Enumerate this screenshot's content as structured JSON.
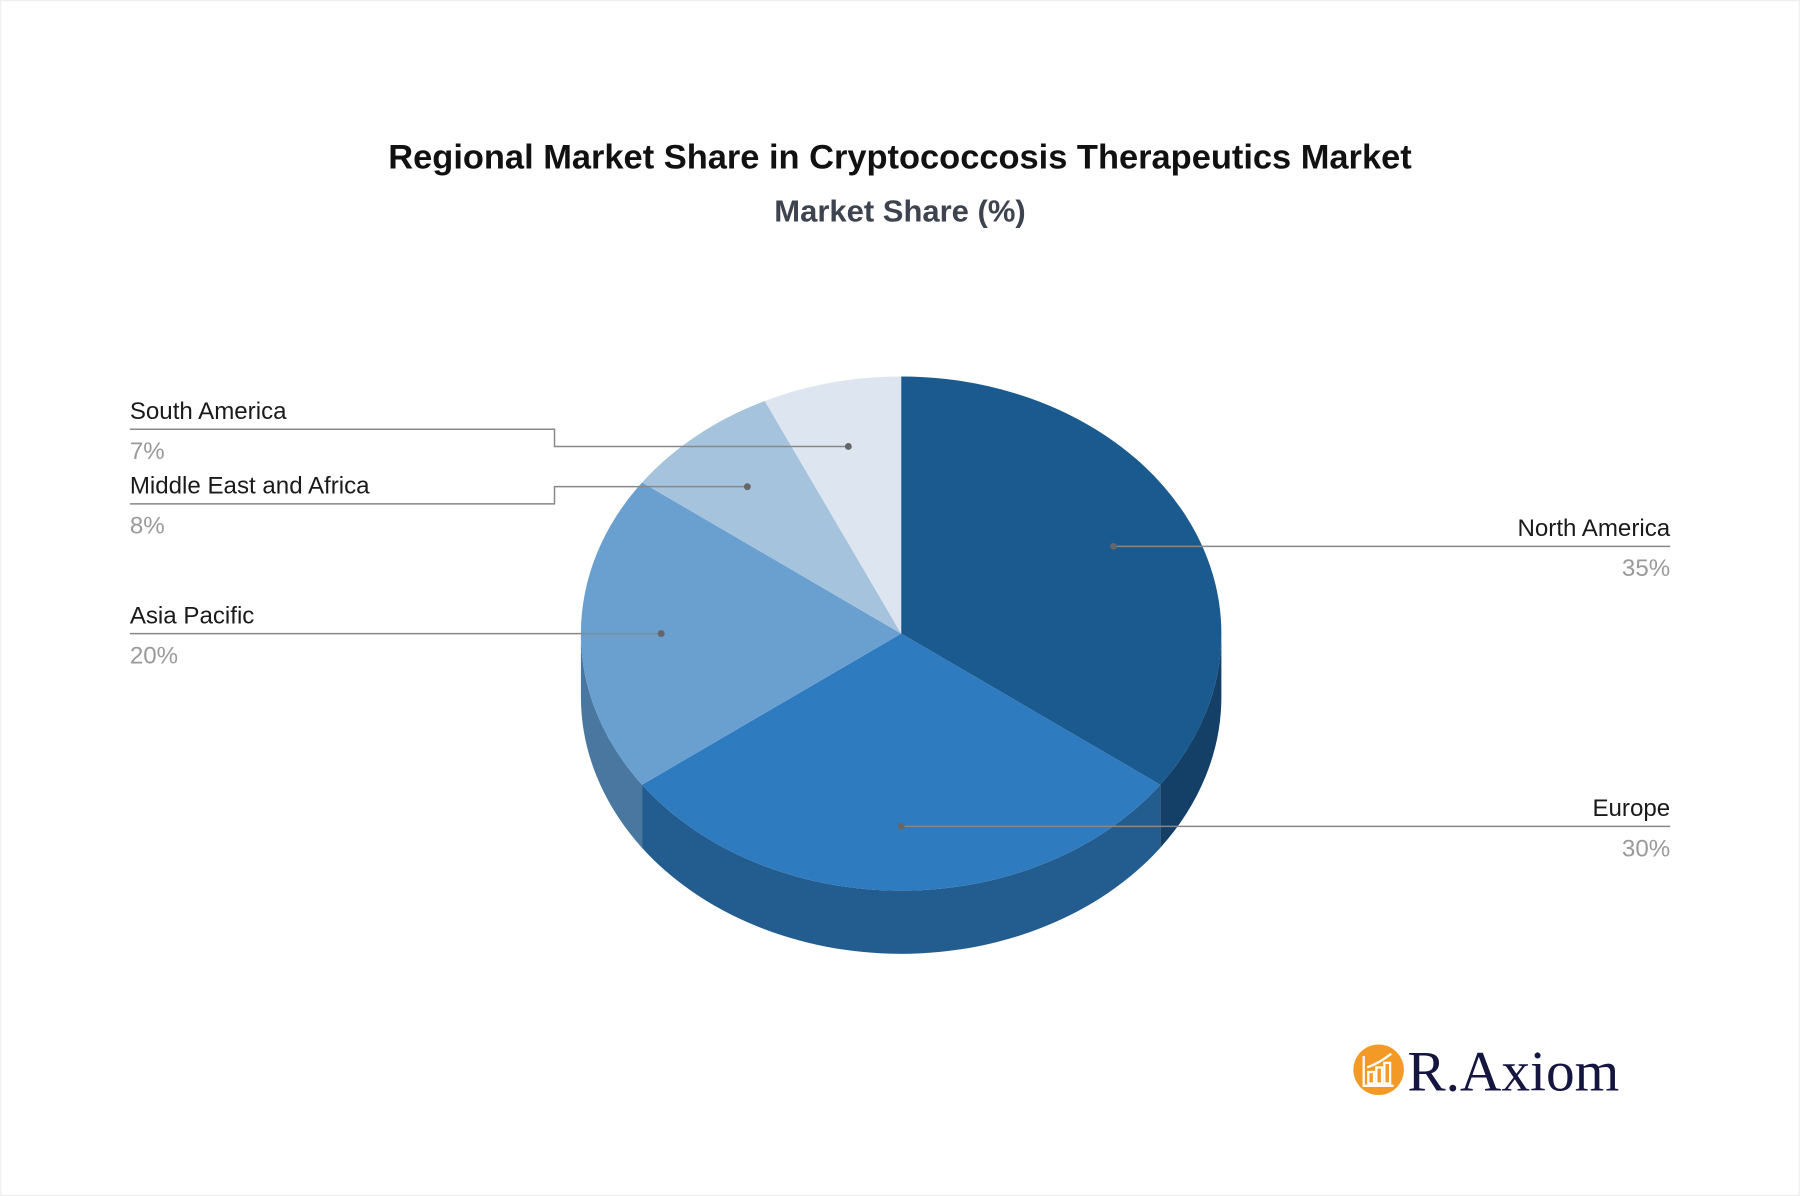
{
  "chart_data": {
    "type": "pie",
    "style": "3d",
    "title": "Regional Market Share in Cryptococcosis Therapeutics Market",
    "subtitle": "Market Share (%)",
    "categories": [
      "North America",
      "Europe",
      "Asia Pacific",
      "Middle East and Africa",
      "South America"
    ],
    "values": [
      35,
      30,
      20,
      8,
      7
    ],
    "value_labels": [
      "35%",
      "30%",
      "20%",
      "8%",
      "7%"
    ],
    "colors": [
      "#1a5a8e",
      "#2e7bbf",
      "#69a0d0",
      "#a6c3de",
      "#dde6f0"
    ],
    "side_colors": [
      "#143f66",
      "#235d8f",
      "#4a77a0",
      "#7f9cb8",
      "#b0bccb"
    ]
  },
  "logo": {
    "text": "R.Axiom",
    "icon": "bar-chart-growth-icon",
    "color": "#f39a26"
  }
}
